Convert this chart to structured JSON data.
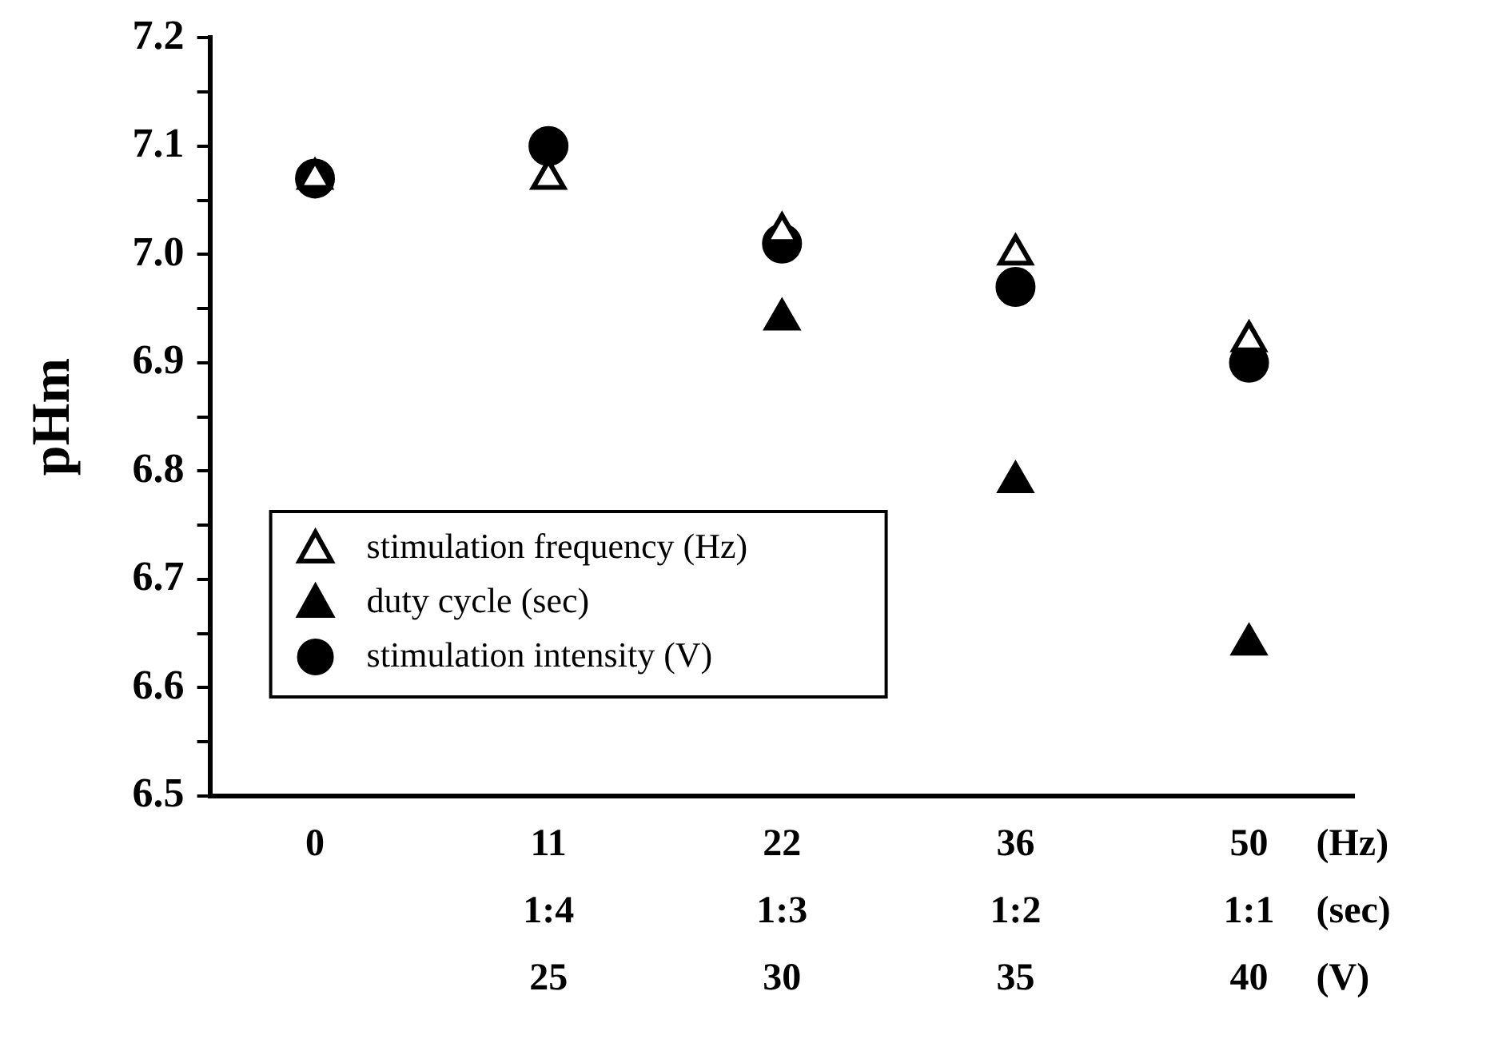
{
  "chart_data": {
    "type": "scatter",
    "ylabel": "pHm",
    "categories": [
      "0",
      "11\n1:4\n25",
      "22\n1:3\n30",
      "36\n1:2\n35",
      "50\n1:1\n40"
    ],
    "series": [
      {
        "name": "stimulation frequency (Hz)",
        "color": "#ffffff",
        "marker": "triangle",
        "values": [
          7.07,
          7.07,
          7.02,
          7.0,
          6.92
        ]
      },
      {
        "name": "duty cycle (sec)",
        "color": "#000000",
        "marker": "triangle",
        "values": [
          null,
          null,
          6.94,
          6.79,
          6.64
        ]
      },
      {
        "name": "stimulation intensity (V)",
        "color": "#000000",
        "marker": "circle",
        "values": [
          7.07,
          7.1,
          7.01,
          6.97,
          6.9
        ]
      }
    ],
    "ylim": [
      6.5,
      7.2
    ],
    "yticks": [
      6.5,
      {
        "value": 6.55,
        "label": null
      },
      6.6,
      {
        "value": 6.65,
        "label": null
      },
      6.7,
      {
        "value": 6.75,
        "label": null
      },
      6.8,
      {
        "value": 6.85,
        "label": null
      },
      6.9,
      {
        "value": 6.95,
        "label": null
      },
      {
        "value": 7.0,
        "label": "7.0"
      },
      {
        "value": 7.05,
        "label": null
      },
      7.1,
      {
        "value": 7.15,
        "label": null
      },
      7.2
    ],
    "annotations": [
      "(Hz)",
      "(sec)",
      "(V)"
    ],
    "legend": "bottom left",
    "grid": false
  }
}
